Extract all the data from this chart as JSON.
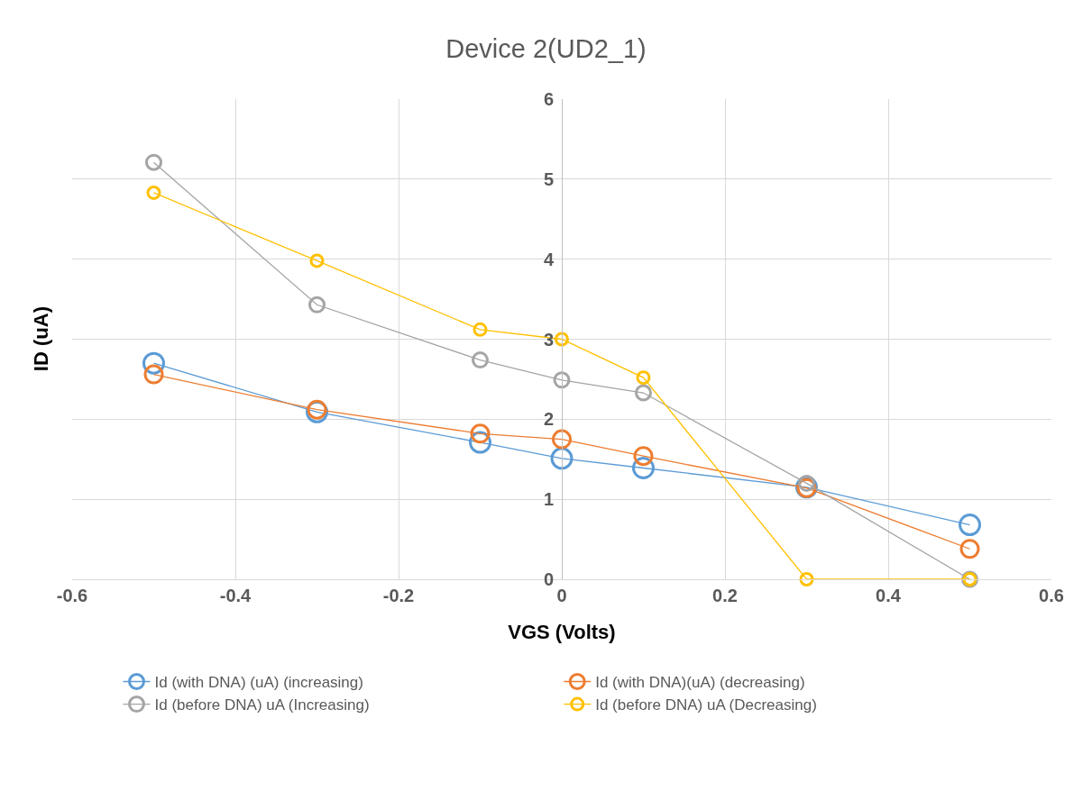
{
  "chart_data": {
    "type": "line",
    "title": "Device 2(UD2_1)",
    "xlabel": "VGS (Volts)",
    "ylabel": "ID (uA)",
    "x": [
      -0.5,
      -0.3,
      -0.1,
      0,
      0.1,
      0.3,
      0.5
    ],
    "series": [
      {
        "name": "Id (with DNA) (uA) (increasing)",
        "color": "#5b9bd5",
        "values": [
          2.7,
          2.09,
          1.71,
          1.51,
          1.39,
          1.15,
          0.68
        ]
      },
      {
        "name": "Id (with DNA)(uA) (decreasing)",
        "color": "#ed7d31",
        "values": [
          2.56,
          2.12,
          1.82,
          1.75,
          1.54,
          1.14,
          0.38
        ]
      },
      {
        "name": "Id (before DNA) uA (Increasing)",
        "color": "#a5a5a5",
        "values": [
          5.21,
          3.43,
          2.74,
          2.49,
          2.33,
          1.2,
          0
        ]
      },
      {
        "name": "Id (before DNA) uA (Decreasing)",
        "color": "#ffc000",
        "values": [
          4.83,
          3.98,
          3.12,
          3,
          2.52,
          0,
          0
        ]
      }
    ],
    "xlim": [
      -0.6,
      0.6
    ],
    "xticks": [
      -0.6,
      -0.4,
      -0.2,
      0,
      0.2,
      0.4,
      0.6
    ],
    "ylim": [
      0,
      6
    ],
    "yticks": [
      0,
      1,
      2,
      3,
      4,
      5,
      6
    ],
    "grid": true,
    "legend": "bottom",
    "marker": "circle",
    "line_style": "solid"
  }
}
